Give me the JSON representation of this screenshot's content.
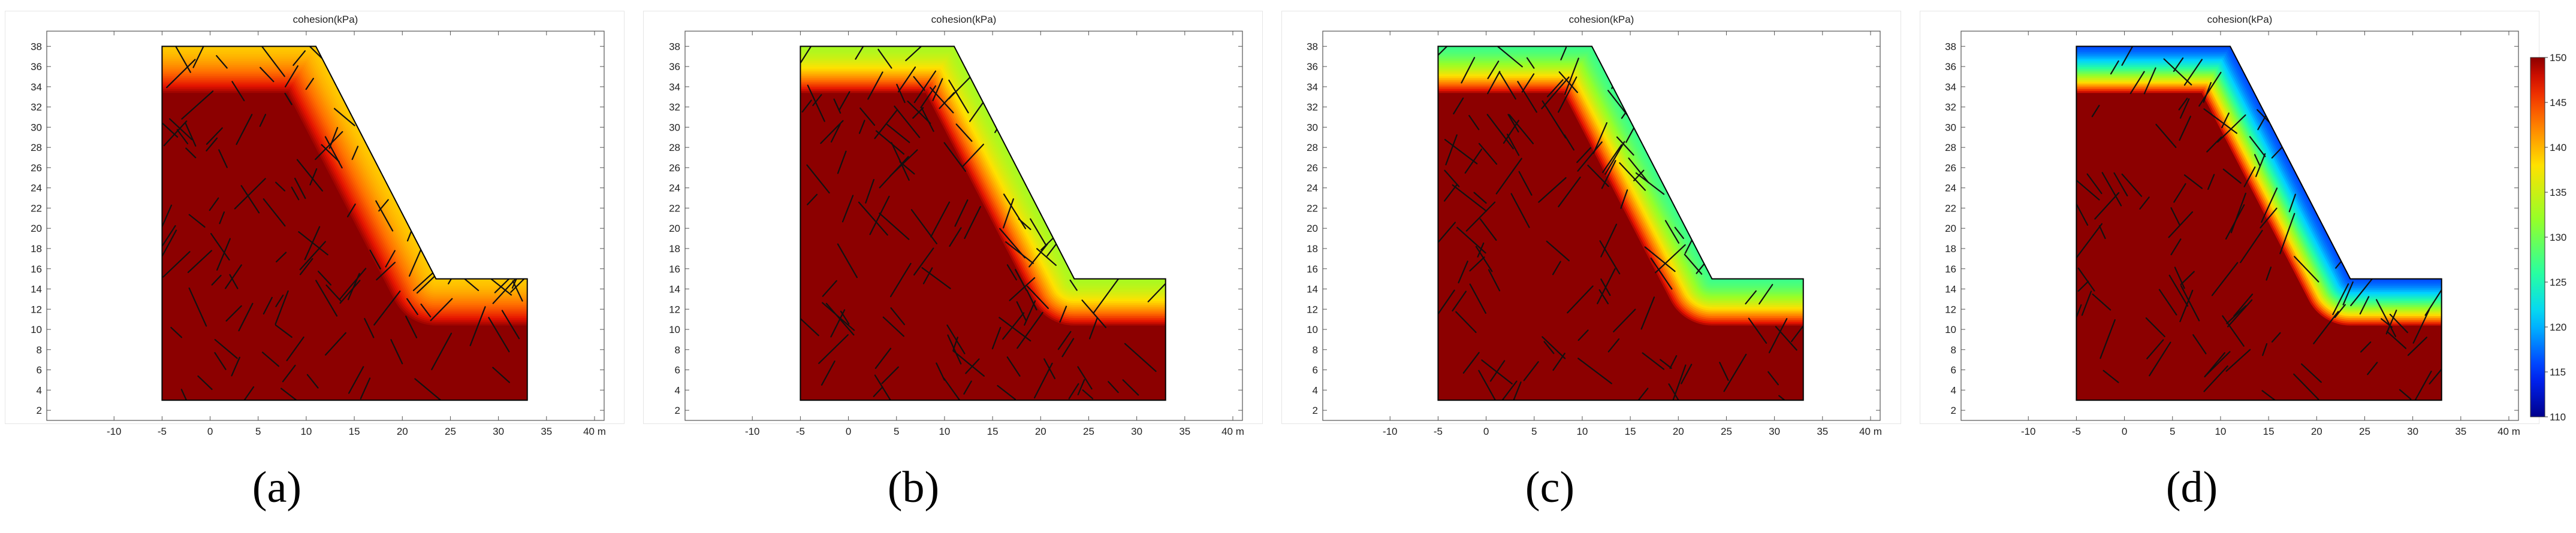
{
  "figure": {
    "captions": [
      "(a)",
      "(b)",
      "(c)",
      "(d)"
    ],
    "colorbar": {
      "colormap": "rainbow",
      "range": [
        110,
        150
      ],
      "ticks": [
        "150",
        "145",
        "140",
        "135",
        "130",
        "125",
        "120",
        "115",
        "110"
      ]
    }
  },
  "chart_data": [
    {
      "type": "heatmap",
      "title": "cohesion(kPa)",
      "caption": "(a)",
      "x_unit": "m",
      "xlim": [
        -17,
        41
      ],
      "ylim": [
        1,
        39.5
      ],
      "x_ticks": [
        "-10",
        "-5",
        "0",
        "5",
        "10",
        "15",
        "20",
        "25",
        "30",
        "35",
        "40 m"
      ],
      "y_ticks": [
        "2",
        "4",
        "6",
        "8",
        "10",
        "12",
        "14",
        "16",
        "18",
        "20",
        "22",
        "24",
        "26",
        "28",
        "30",
        "32",
        "34",
        "36",
        "38"
      ],
      "slope_polygon": [
        [
          -5,
          3
        ],
        [
          33,
          3
        ],
        [
          33,
          15
        ],
        [
          23.5,
          15
        ],
        [
          11,
          38
        ],
        [
          -5,
          38
        ]
      ],
      "field": "cohesion (kPa)",
      "interior_value": 150,
      "surface_value": 139,
      "weathered_depth": 4.8,
      "fractures": "black joint traces"
    },
    {
      "type": "heatmap",
      "title": "cohesion(kPa)",
      "caption": "(b)",
      "x_unit": "m",
      "xlim": [
        -17,
        41
      ],
      "ylim": [
        1,
        39.5
      ],
      "x_ticks": [
        "-10",
        "-5",
        "0",
        "5",
        "10",
        "15",
        "20",
        "25",
        "30",
        "35",
        "40 m"
      ],
      "y_ticks": [
        "2",
        "4",
        "6",
        "8",
        "10",
        "12",
        "14",
        "16",
        "18",
        "20",
        "22",
        "24",
        "26",
        "28",
        "30",
        "32",
        "34",
        "36",
        "38"
      ],
      "slope_polygon": [
        [
          -5,
          3
        ],
        [
          33,
          3
        ],
        [
          33,
          15
        ],
        [
          23.5,
          15
        ],
        [
          11,
          38
        ],
        [
          -5,
          38
        ]
      ],
      "field": "cohesion (kPa)",
      "interior_value": 150,
      "surface_value": 133,
      "weathered_depth": 4.8,
      "fractures": "black joint traces"
    },
    {
      "type": "heatmap",
      "title": "cohesion(kPa)",
      "caption": "(c)",
      "x_unit": "m",
      "xlim": [
        -17,
        41
      ],
      "ylim": [
        1,
        39.5
      ],
      "x_ticks": [
        "-10",
        "-5",
        "0",
        "5",
        "10",
        "15",
        "20",
        "25",
        "30",
        "35",
        "40 m"
      ],
      "y_ticks": [
        "2",
        "4",
        "6",
        "8",
        "10",
        "12",
        "14",
        "16",
        "18",
        "20",
        "22",
        "24",
        "26",
        "28",
        "30",
        "32",
        "34",
        "36",
        "38"
      ],
      "slope_polygon": [
        [
          -5,
          3
        ],
        [
          33,
          3
        ],
        [
          33,
          15
        ],
        [
          23.5,
          15
        ],
        [
          11,
          38
        ],
        [
          -5,
          38
        ]
      ],
      "field": "cohesion (kPa)",
      "interior_value": 150,
      "surface_value": 127,
      "weathered_depth": 4.8,
      "fractures": "black joint traces"
    },
    {
      "type": "heatmap",
      "title": "cohesion(kPa)",
      "caption": "(d)",
      "x_unit": "m",
      "xlim": [
        -17,
        41
      ],
      "ylim": [
        1,
        39.5
      ],
      "x_ticks": [
        "-10",
        "-5",
        "0",
        "5",
        "10",
        "15",
        "20",
        "25",
        "30",
        "35",
        "40 m"
      ],
      "y_ticks": [
        "2",
        "4",
        "6",
        "8",
        "10",
        "12",
        "14",
        "16",
        "18",
        "20",
        "22",
        "24",
        "26",
        "28",
        "30",
        "32",
        "34",
        "36",
        "38"
      ],
      "slope_polygon": [
        [
          -5,
          3
        ],
        [
          33,
          3
        ],
        [
          33,
          15
        ],
        [
          23.5,
          15
        ],
        [
          11,
          38
        ],
        [
          -5,
          38
        ]
      ],
      "field": "cohesion (kPa)",
      "interior_value": 150,
      "surface_value": 116,
      "weathered_depth": 4.8,
      "fractures": "black joint traces",
      "colorbar_range": [
        110,
        150
      ]
    }
  ]
}
